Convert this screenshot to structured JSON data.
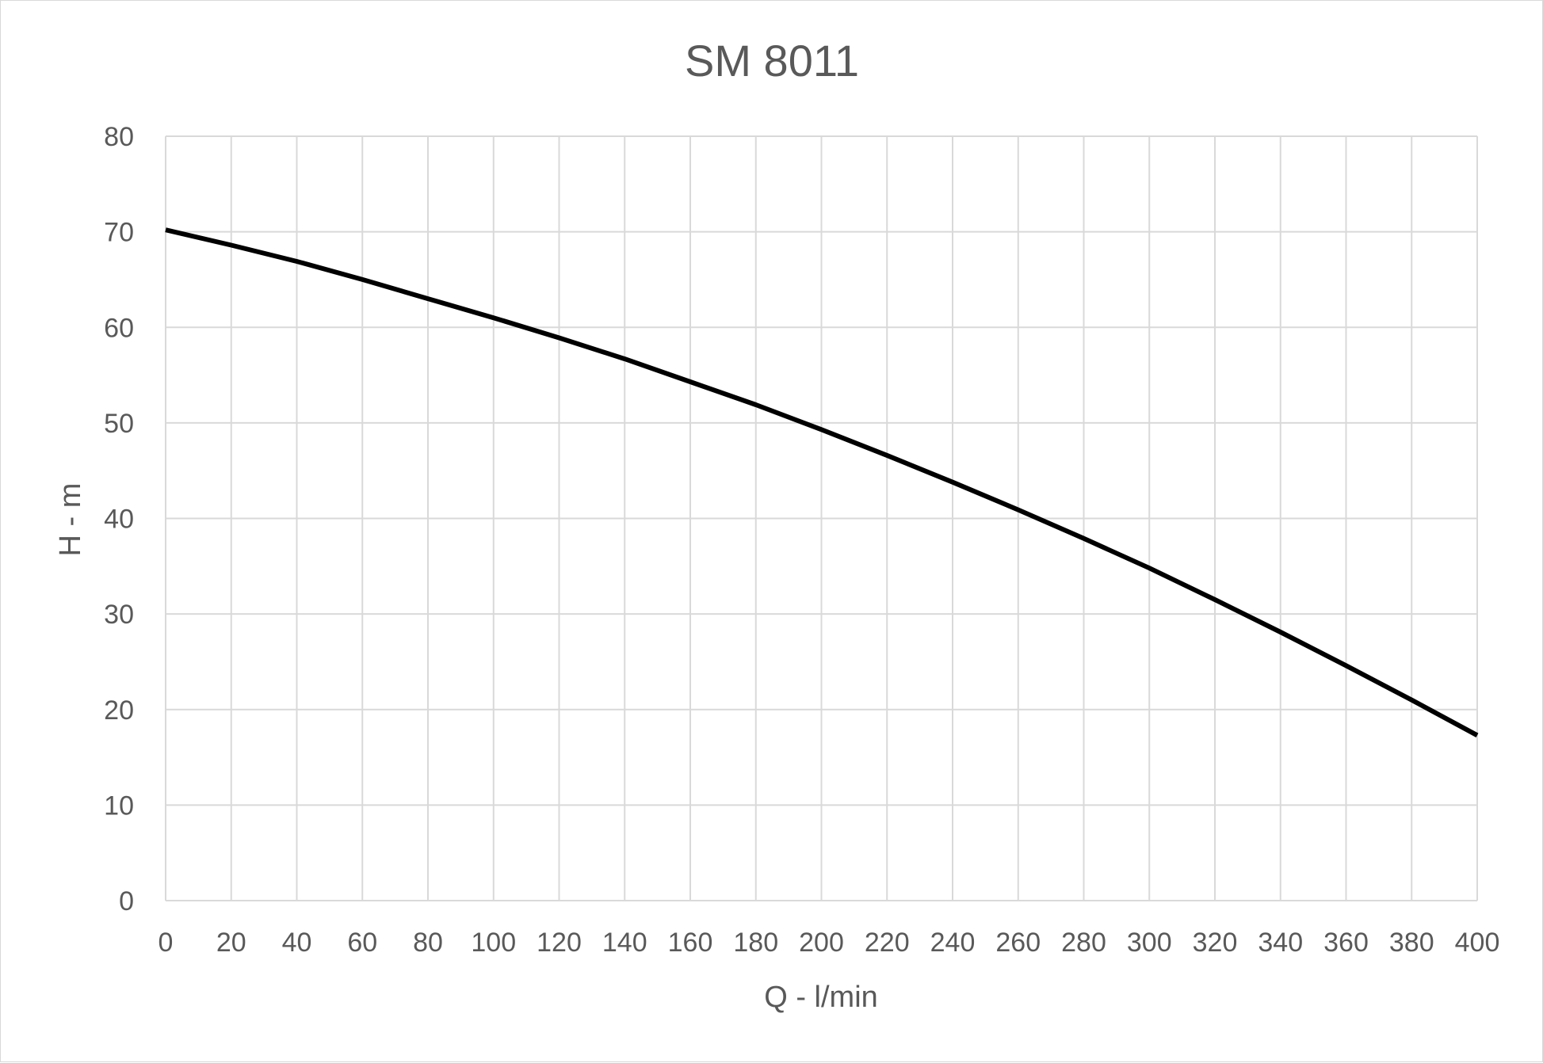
{
  "chart_data": {
    "type": "line",
    "title": "SM 8011",
    "xlabel": "Q - l/min",
    "ylabel": "H - m",
    "xlim": [
      0,
      400
    ],
    "ylim": [
      0,
      80
    ],
    "x_ticks": [
      0,
      20,
      40,
      60,
      80,
      100,
      120,
      140,
      160,
      180,
      200,
      220,
      240,
      260,
      280,
      300,
      320,
      340,
      360,
      380,
      400
    ],
    "y_ticks": [
      0,
      10,
      20,
      30,
      40,
      50,
      60,
      70,
      80
    ],
    "grid": true,
    "legend": "none",
    "series": [
      {
        "color": "#000000",
        "x": [
          0,
          20,
          40,
          60,
          80,
          100,
          120,
          140,
          160,
          180,
          200,
          220,
          240,
          260,
          280,
          300,
          320,
          340,
          360,
          380,
          400
        ],
        "y": [
          70.2,
          68.6,
          66.9,
          65.0,
          63.0,
          61.0,
          58.9,
          56.7,
          54.3,
          51.9,
          49.3,
          46.6,
          43.8,
          40.9,
          37.9,
          34.8,
          31.5,
          28.1,
          24.6,
          21.0,
          17.3
        ]
      }
    ],
    "colors": {
      "grid": "#d9d9d9",
      "text": "#595959",
      "line": "#000000"
    }
  }
}
